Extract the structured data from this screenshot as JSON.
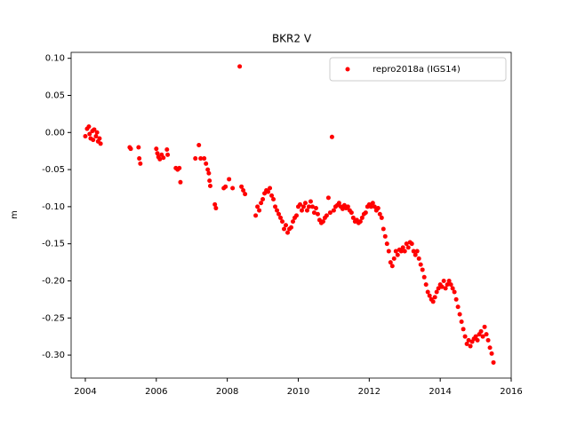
{
  "chart_data": {
    "type": "scatter",
    "title": "BKR2 V",
    "y_label": "m",
    "xlim": [
      2003.6,
      2016.0
    ],
    "xticks": [
      2004,
      2006,
      2008,
      2010,
      2012,
      2014,
      2016
    ],
    "ylim": [
      -0.331,
      0.108
    ],
    "yticks": [
      {
        "value": -0.3,
        "label": "-0.30"
      },
      -0.25,
      {
        "value": -0.2,
        "label": "-0.20"
      },
      -0.15,
      {
        "value": -0.1,
        "label": "-0.10"
      },
      -0.05,
      {
        "value": 0,
        "label": "0.00"
      },
      0.05,
      {
        "value": 0.1,
        "label": "0.10"
      }
    ],
    "legend_position": "upper right",
    "series": [
      {
        "name": "repro2018a (IGS14)",
        "color": "#ff0000",
        "x": [
          2004.0,
          2004.05,
          2004.1,
          2004.12,
          2004.15,
          2004.2,
          2004.22,
          2004.25,
          2004.3,
          2004.33,
          2004.36,
          2004.4,
          2004.43,
          2005.25,
          2005.28,
          2005.5,
          2005.52,
          2005.55,
          2006.0,
          2006.03,
          2006.06,
          2006.1,
          2006.15,
          2006.2,
          2006.3,
          2006.32,
          2006.55,
          2006.6,
          2006.65,
          2006.68,
          2007.1,
          2007.2,
          2007.25,
          2007.35,
          2007.4,
          2007.45,
          2007.48,
          2007.5,
          2007.52,
          2007.65,
          2007.68,
          2007.9,
          2007.95,
          2008.05,
          2008.15,
          2008.35,
          2008.4,
          2008.45,
          2008.5,
          2008.8,
          2008.85,
          2008.9,
          2008.95,
          2009.0,
          2009.05,
          2009.1,
          2009.15,
          2009.2,
          2009.25,
          2009.3,
          2009.35,
          2009.4,
          2009.45,
          2009.5,
          2009.55,
          2009.6,
          2009.65,
          2009.7,
          2009.75,
          2009.8,
          2009.85,
          2009.9,
          2009.95,
          2010.0,
          2010.05,
          2010.1,
          2010.15,
          2010.2,
          2010.25,
          2010.3,
          2010.35,
          2010.4,
          2010.45,
          2010.5,
          2010.55,
          2010.6,
          2010.65,
          2010.7,
          2010.75,
          2010.8,
          2010.85,
          2010.9,
          2010.95,
          2011.0,
          2011.05,
          2011.1,
          2011.15,
          2011.2,
          2011.25,
          2011.3,
          2011.35,
          2011.4,
          2011.45,
          2011.5,
          2011.55,
          2011.6,
          2011.65,
          2011.7,
          2011.75,
          2011.8,
          2011.85,
          2011.9,
          2011.95,
          2012.0,
          2012.05,
          2012.1,
          2012.15,
          2012.2,
          2012.25,
          2012.3,
          2012.35,
          2012.4,
          2012.45,
          2012.5,
          2012.55,
          2012.6,
          2012.65,
          2012.7,
          2012.75,
          2012.8,
          2012.85,
          2012.9,
          2012.95,
          2013.0,
          2013.05,
          2013.1,
          2013.15,
          2013.2,
          2013.25,
          2013.3,
          2013.35,
          2013.4,
          2013.45,
          2013.5,
          2013.55,
          2013.6,
          2013.65,
          2013.7,
          2013.75,
          2013.8,
          2013.85,
          2013.9,
          2013.95,
          2014.0,
          2014.05,
          2014.1,
          2014.15,
          2014.2,
          2014.25,
          2014.3,
          2014.35,
          2014.4,
          2014.45,
          2014.5,
          2014.55,
          2014.6,
          2014.65,
          2014.7,
          2014.75,
          2014.8,
          2014.85,
          2014.9,
          2014.95,
          2015.0,
          2015.05,
          2015.1,
          2015.15,
          2015.2,
          2015.25,
          2015.3,
          2015.35,
          2015.4,
          2015.45,
          2015.5
        ],
        "values": [
          -0.005,
          0.005,
          0.008,
          -0.002,
          -0.008,
          0.002,
          -0.01,
          0.004,
          -0.005,
          0.0,
          -0.012,
          -0.008,
          -0.015,
          -0.02,
          -0.022,
          -0.02,
          -0.035,
          -0.042,
          -0.022,
          -0.028,
          -0.033,
          -0.036,
          -0.03,
          -0.034,
          -0.023,
          -0.03,
          -0.048,
          -0.05,
          -0.048,
          -0.067,
          -0.035,
          -0.017,
          -0.035,
          -0.035,
          -0.042,
          -0.05,
          -0.055,
          -0.065,
          -0.072,
          -0.097,
          -0.102,
          -0.075,
          -0.073,
          -0.063,
          -0.075,
          0.089,
          -0.073,
          -0.078,
          -0.083,
          -0.112,
          -0.1,
          -0.105,
          -0.095,
          -0.09,
          -0.082,
          -0.078,
          -0.08,
          -0.075,
          -0.085,
          -0.09,
          -0.1,
          -0.105,
          -0.11,
          -0.115,
          -0.12,
          -0.13,
          -0.125,
          -0.135,
          -0.13,
          -0.128,
          -0.12,
          -0.115,
          -0.112,
          -0.1,
          -0.097,
          -0.105,
          -0.1,
          -0.095,
          -0.105,
          -0.1,
          -0.093,
          -0.1,
          -0.108,
          -0.102,
          -0.11,
          -0.118,
          -0.122,
          -0.12,
          -0.115,
          -0.112,
          -0.088,
          -0.108,
          -0.006,
          -0.105,
          -0.1,
          -0.098,
          -0.095,
          -0.1,
          -0.103,
          -0.098,
          -0.102,
          -0.1,
          -0.105,
          -0.108,
          -0.115,
          -0.12,
          -0.118,
          -0.122,
          -0.12,
          -0.115,
          -0.11,
          -0.108,
          -0.1,
          -0.097,
          -0.1,
          -0.095,
          -0.1,
          -0.105,
          -0.102,
          -0.11,
          -0.115,
          -0.13,
          -0.14,
          -0.15,
          -0.16,
          -0.175,
          -0.18,
          -0.17,
          -0.16,
          -0.165,
          -0.158,
          -0.16,
          -0.155,
          -0.16,
          -0.15,
          -0.155,
          -0.148,
          -0.15,
          -0.16,
          -0.165,
          -0.16,
          -0.17,
          -0.178,
          -0.185,
          -0.195,
          -0.205,
          -0.215,
          -0.22,
          -0.225,
          -0.228,
          -0.222,
          -0.215,
          -0.21,
          -0.205,
          -0.208,
          -0.2,
          -0.21,
          -0.205,
          -0.2,
          -0.205,
          -0.21,
          -0.215,
          -0.225,
          -0.235,
          -0.245,
          -0.255,
          -0.265,
          -0.275,
          -0.285,
          -0.28,
          -0.288,
          -0.282,
          -0.278,
          -0.275,
          -0.28,
          -0.272,
          -0.268,
          -0.275,
          -0.262,
          -0.272,
          -0.28,
          -0.29,
          -0.298,
          -0.31
        ]
      }
    ]
  }
}
